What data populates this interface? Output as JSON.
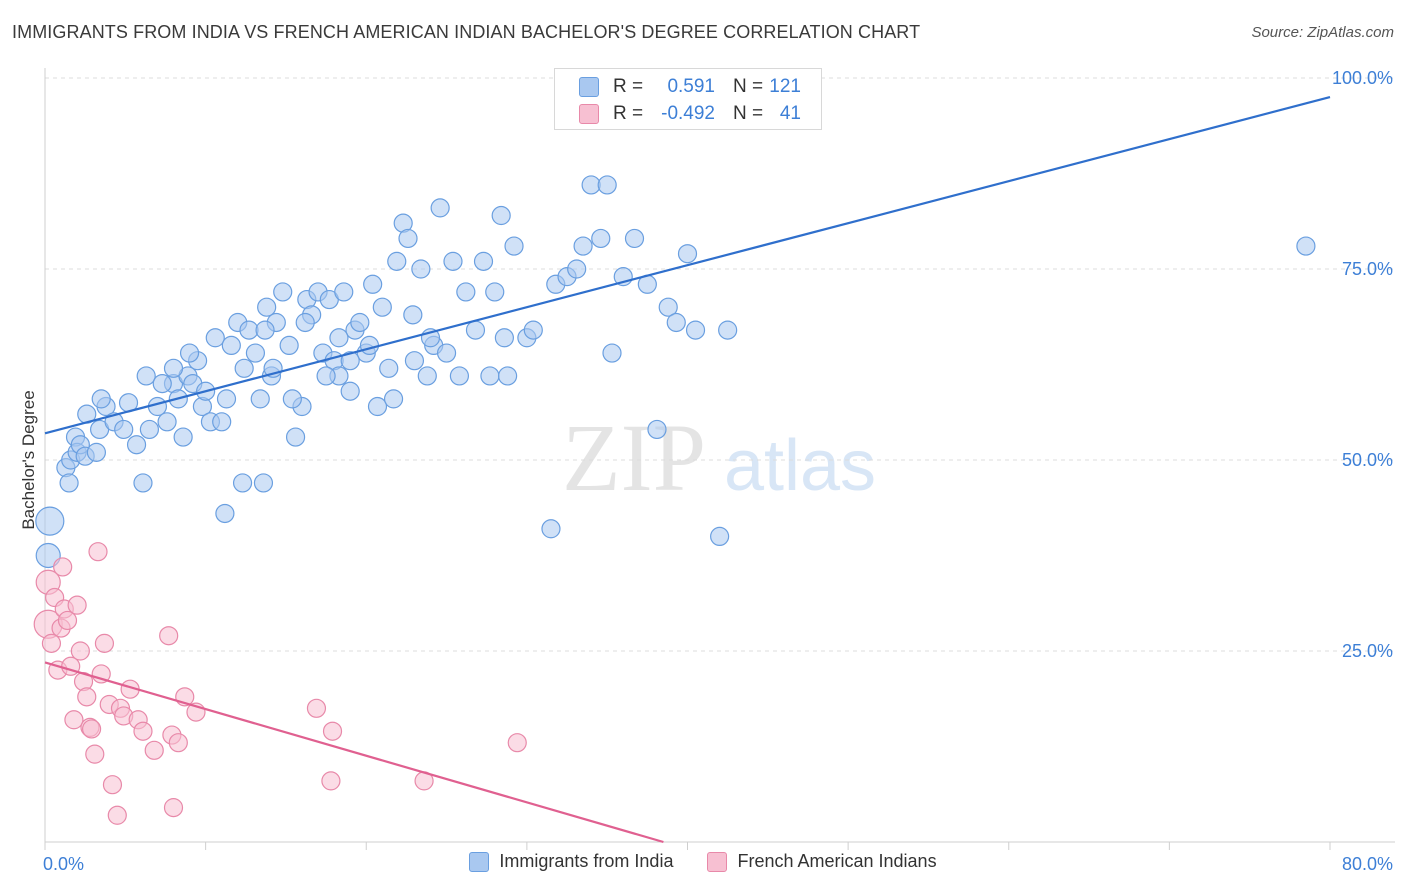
{
  "title": "IMMIGRANTS FROM INDIA VS FRENCH AMERICAN INDIAN BACHELOR'S DEGREE CORRELATION CHART",
  "source": "Source: ZipAtlas.com",
  "watermark": {
    "part1": "ZIP",
    "part2": "atlas"
  },
  "stats": [
    {
      "r_label": "R =",
      "r_value": "0.591",
      "n_label": "N =",
      "n_value": "121",
      "color": "#a9c8f0",
      "border": "#6a9fe0"
    },
    {
      "r_label": "R =",
      "r_value": "-0.492",
      "n_label": "N =",
      "n_value": "41",
      "color": "#f7c0d2",
      "border": "#e889a9"
    }
  ],
  "legend": [
    {
      "label": "Immigrants from India",
      "color": "#a9c8f0",
      "border": "#6a9fe0"
    },
    {
      "label": "French American Indians",
      "color": "#f7c0d2",
      "border": "#e889a9"
    }
  ],
  "chart_data": {
    "type": "scatter",
    "title": "IMMIGRANTS FROM INDIA VS FRENCH AMERICAN INDIAN BACHELOR'S DEGREE CORRELATION CHART",
    "xlabel": "",
    "ylabel": "Bachelor's Degree",
    "xlim": [
      0,
      80
    ],
    "ylim": [
      0,
      100
    ],
    "x_tick_labels": [
      "0.0%",
      "80.0%"
    ],
    "y_ticks": [
      25,
      50,
      75,
      100
    ],
    "y_tick_labels": [
      "25.0%",
      "50.0%",
      "75.0%",
      "100.0%"
    ],
    "grid": true,
    "legend_position": "bottom",
    "series": [
      {
        "name": "Immigrants from India",
        "color": "#6a9fe0",
        "fill": "#a9c8f0",
        "trend": {
          "x": [
            0,
            80
          ],
          "y": [
            53.5,
            97.5
          ],
          "color": "#2f6fcc"
        },
        "points": [
          [
            0.3,
            42,
            14
          ],
          [
            0.2,
            37.5,
            12
          ],
          [
            1.3,
            49,
            9
          ],
          [
            1.5,
            47,
            9
          ],
          [
            1.6,
            50,
            9
          ],
          [
            1.9,
            53,
            9
          ],
          [
            2.0,
            51,
            9
          ],
          [
            2.6,
            56,
            9
          ],
          [
            3.4,
            54,
            9
          ],
          [
            3.8,
            57,
            9
          ],
          [
            2.2,
            52,
            9
          ],
          [
            2.5,
            50.5,
            9
          ],
          [
            3.2,
            51,
            9
          ],
          [
            3.5,
            58,
            9
          ],
          [
            4.3,
            55,
            9
          ],
          [
            4.9,
            54,
            9
          ],
          [
            5.2,
            57.5,
            9
          ],
          [
            5.7,
            52,
            9
          ],
          [
            6.1,
            47,
            9
          ],
          [
            6.3,
            61,
            9
          ],
          [
            6.5,
            54,
            9
          ],
          [
            7.0,
            57,
            9
          ],
          [
            7.6,
            55,
            9
          ],
          [
            8.0,
            60,
            9
          ],
          [
            8.3,
            58,
            9
          ],
          [
            8.6,
            53,
            9
          ],
          [
            8.9,
            61,
            9
          ],
          [
            9.2,
            60,
            9
          ],
          [
            9.5,
            63,
            9
          ],
          [
            9.8,
            57,
            9
          ],
          [
            10.3,
            55,
            9
          ],
          [
            10.6,
            66,
            9
          ],
          [
            11.0,
            55,
            9
          ],
          [
            11.3,
            58,
            9
          ],
          [
            11.6,
            65,
            9
          ],
          [
            12.0,
            68,
            9
          ],
          [
            12.4,
            62,
            9
          ],
          [
            12.7,
            67,
            9
          ],
          [
            13.1,
            64,
            9
          ],
          [
            13.4,
            58,
            9
          ],
          [
            13.8,
            70,
            9
          ],
          [
            14.1,
            61,
            9
          ],
          [
            14.4,
            68,
            9
          ],
          [
            14.8,
            72,
            9
          ],
          [
            15.2,
            65,
            9
          ],
          [
            15.6,
            53,
            9
          ],
          [
            16.0,
            57,
            9
          ],
          [
            16.3,
            71,
            9
          ],
          [
            16.6,
            69,
            9
          ],
          [
            17.0,
            72,
            9
          ],
          [
            17.3,
            64,
            9
          ],
          [
            17.7,
            71,
            9
          ],
          [
            18.0,
            63,
            9
          ],
          [
            18.3,
            61,
            9
          ],
          [
            18.6,
            72,
            9
          ],
          [
            19.0,
            59,
            9
          ],
          [
            19.3,
            67,
            9
          ],
          [
            19.6,
            68,
            9
          ],
          [
            20.0,
            64,
            9
          ],
          [
            20.4,
            73,
            9
          ],
          [
            20.7,
            57,
            9
          ],
          [
            21.0,
            70,
            9
          ],
          [
            21.4,
            62,
            9
          ],
          [
            21.9,
            76,
            9
          ],
          [
            22.3,
            81,
            9
          ],
          [
            22.6,
            79,
            9
          ],
          [
            23.0,
            63,
            9
          ],
          [
            23.4,
            75,
            9
          ],
          [
            23.8,
            61,
            9
          ],
          [
            24.2,
            65,
            9
          ],
          [
            24.6,
            83,
            9
          ],
          [
            25.0,
            64,
            9
          ],
          [
            25.4,
            76,
            9
          ],
          [
            25.8,
            61,
            9
          ],
          [
            26.2,
            72,
            9
          ],
          [
            26.8,
            67,
            9
          ],
          [
            27.3,
            76,
            9
          ],
          [
            27.7,
            61,
            9
          ],
          [
            28.0,
            72,
            9
          ],
          [
            28.4,
            82,
            9
          ],
          [
            28.8,
            61,
            9
          ],
          [
            29.2,
            78,
            9
          ],
          [
            30.0,
            66,
            9
          ],
          [
            30.4,
            67,
            9
          ],
          [
            31.5,
            41,
            9
          ],
          [
            31.8,
            73,
            9
          ],
          [
            32.5,
            74,
            9
          ],
          [
            33.1,
            75,
            9
          ],
          [
            33.5,
            78,
            9
          ],
          [
            34.0,
            86,
            9
          ],
          [
            34.6,
            79,
            9
          ],
          [
            35.3,
            64,
            9
          ],
          [
            36.0,
            74,
            9
          ],
          [
            36.7,
            79,
            9
          ],
          [
            37.5,
            73,
            9
          ],
          [
            38.1,
            54,
            9
          ],
          [
            38.8,
            70,
            9
          ],
          [
            39.3,
            68,
            9
          ],
          [
            40.0,
            77,
            9
          ],
          [
            40.5,
            67,
            9
          ],
          [
            42.0,
            40,
            9
          ],
          [
            42.5,
            67,
            9
          ],
          [
            7.3,
            60,
            9
          ],
          [
            8.0,
            62,
            9
          ],
          [
            9.0,
            64,
            9
          ],
          [
            10.0,
            59,
            9
          ],
          [
            11.2,
            43,
            9
          ],
          [
            12.3,
            47,
            9
          ],
          [
            13.7,
            67,
            9
          ],
          [
            14.2,
            62,
            9
          ],
          [
            15.4,
            58,
            9
          ],
          [
            16.2,
            68,
            9
          ],
          [
            17.5,
            61,
            9
          ],
          [
            18.3,
            66,
            9
          ],
          [
            19.0,
            63,
            9
          ],
          [
            20.2,
            65,
            9
          ],
          [
            21.7,
            58,
            9
          ],
          [
            22.9,
            69,
            9
          ],
          [
            24.0,
            66,
            9
          ],
          [
            28.6,
            66,
            9
          ],
          [
            35.0,
            86,
            9
          ],
          [
            78.5,
            78,
            9
          ],
          [
            13.6,
            47,
            9
          ]
        ]
      },
      {
        "name": "French American Indians",
        "color": "#e889a9",
        "fill": "#f7c0d2",
        "trend": {
          "x": [
            0,
            38.5
          ],
          "y": [
            23.5,
            0
          ],
          "color": "#e06090"
        },
        "points": [
          [
            0.2,
            34,
            12
          ],
          [
            0.2,
            28.5,
            14
          ],
          [
            0.6,
            32,
            9
          ],
          [
            0.8,
            22.5,
            9
          ],
          [
            1.0,
            28,
            9
          ],
          [
            1.2,
            30.5,
            9
          ],
          [
            1.4,
            29,
            9
          ],
          [
            1.6,
            23,
            9
          ],
          [
            1.8,
            16,
            9
          ],
          [
            2.0,
            31,
            9
          ],
          [
            2.2,
            25,
            9
          ],
          [
            2.4,
            21,
            9
          ],
          [
            2.6,
            19,
            9
          ],
          [
            2.8,
            15,
            9
          ],
          [
            3.1,
            11.5,
            9
          ],
          [
            3.3,
            38,
            9
          ],
          [
            3.5,
            22,
            9
          ],
          [
            3.7,
            26,
            9
          ],
          [
            4.0,
            18,
            9
          ],
          [
            4.2,
            7.5,
            9
          ],
          [
            4.5,
            3.5,
            9
          ],
          [
            4.7,
            17.5,
            9
          ],
          [
            4.9,
            16.5,
            9
          ],
          [
            5.3,
            20,
            9
          ],
          [
            5.8,
            16,
            9
          ],
          [
            6.1,
            14.5,
            9
          ],
          [
            6.8,
            12,
            9
          ],
          [
            7.7,
            27,
            9
          ],
          [
            7.9,
            14,
            9
          ],
          [
            8.0,
            4.5,
            9
          ],
          [
            8.3,
            13,
            9
          ],
          [
            8.7,
            19,
            9
          ],
          [
            9.4,
            17,
            9
          ],
          [
            16.9,
            17.5,
            9
          ],
          [
            17.8,
            8,
            9
          ],
          [
            17.9,
            14.5,
            9
          ],
          [
            23.6,
            8,
            9
          ],
          [
            29.4,
            13,
            9
          ],
          [
            0.4,
            26,
            9
          ],
          [
            1.1,
            36,
            9
          ],
          [
            2.9,
            14.8,
            9
          ]
        ]
      }
    ]
  }
}
